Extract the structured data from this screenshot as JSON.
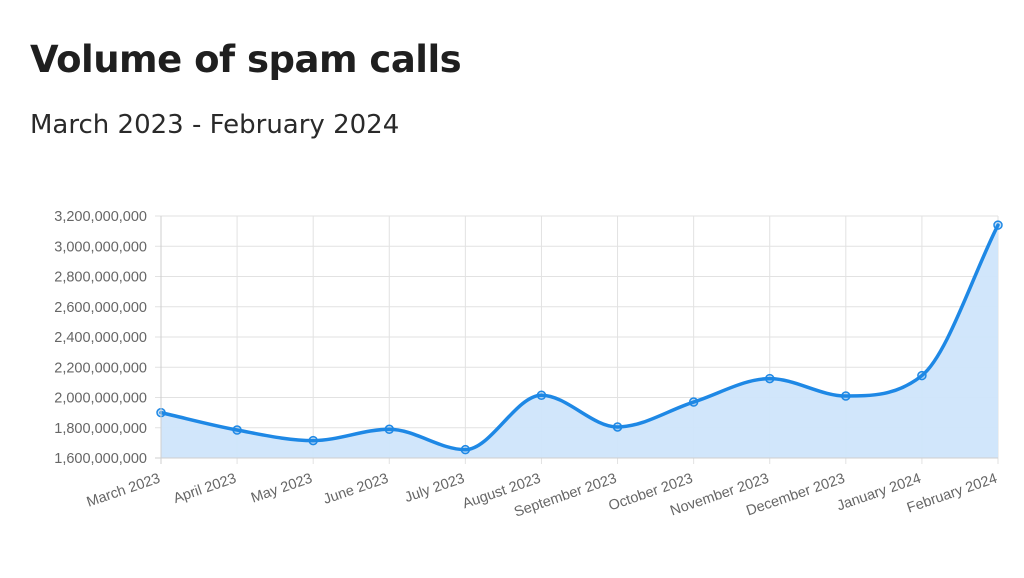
{
  "header": {
    "title": "Volume of spam calls",
    "subtitle": "March 2023 - February 2024"
  },
  "colors": {
    "line": "#1e88e5",
    "fill": "#cfe5fb",
    "grid": "#e2e2e2",
    "tick_text": "#666666"
  },
  "chart_data": {
    "type": "line",
    "title": "Volume of spam calls",
    "subtitle": "March 2023 - February 2024",
    "xlabel": "",
    "ylabel": "",
    "categories": [
      "March 2023",
      "April 2023",
      "May 2023",
      "June 2023",
      "July 2023",
      "August 2023",
      "September 2023",
      "October 2023",
      "November 2023",
      "December 2023",
      "January 2024",
      "February 2024"
    ],
    "series": [
      {
        "values": [
          1900000000,
          1785000000,
          1715000000,
          1790000000,
          1655000000,
          2015000000,
          1805000000,
          1970000000,
          2125000000,
          2010000000,
          2145000000,
          3140000000
        ]
      }
    ],
    "ylim": [
      1600000000,
      3200000000
    ],
    "yticks": [
      1600000000,
      1800000000,
      2000000000,
      2200000000,
      2400000000,
      2600000000,
      2800000000,
      3000000000,
      3200000000
    ],
    "ytick_labels": [
      "1,600,000,000",
      "1,800,000,000",
      "2,000,000,000",
      "2,200,000,000",
      "2,400,000,000",
      "2,600,000,000",
      "2,800,000,000",
      "3,000,000,000",
      "3,200,000,000"
    ],
    "filled": true,
    "smooth": true,
    "grid": true,
    "legend": "none"
  }
}
